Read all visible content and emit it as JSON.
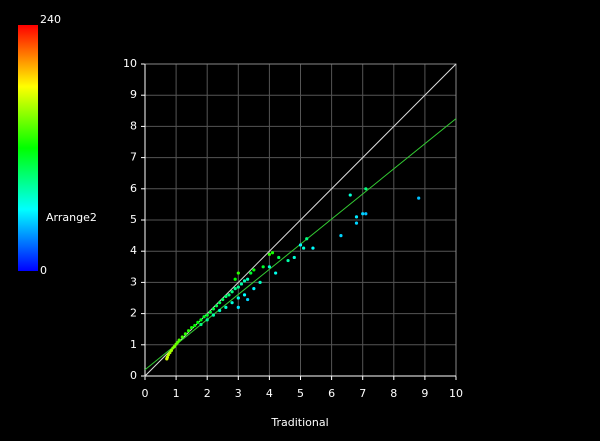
{
  "chart_data": {
    "type": "scatter",
    "x_label": "Traditional",
    "xlim": [
      0,
      10
    ],
    "ylim": [
      0,
      10
    ],
    "xticks": [
      0,
      1,
      2,
      3,
      4,
      5,
      6,
      7,
      8,
      9,
      10
    ],
    "yticks": [
      0,
      1,
      2,
      3,
      4,
      5,
      6,
      7,
      8,
      9,
      10
    ],
    "grid": true,
    "colorbar": {
      "label": "Arrange2",
      "range": [
        0,
        240
      ]
    },
    "reference_line": {
      "color": "#dddddd",
      "x": [
        0,
        10
      ],
      "y": [
        0,
        10
      ]
    },
    "fit_line": {
      "color": "#33cc33",
      "x": [
        0,
        10
      ],
      "y": [
        0.2,
        8.25
      ]
    },
    "points": {
      "x": [
        0.7,
        0.72,
        0.75,
        0.8,
        0.85,
        0.9,
        0.95,
        1.0,
        1.05,
        1.1,
        1.2,
        1.3,
        1.4,
        1.5,
        1.6,
        1.7,
        1.8,
        1.9,
        2.0,
        2.1,
        2.2,
        2.3,
        2.4,
        2.5,
        2.6,
        2.7,
        2.8,
        2.9,
        3.0,
        3.1,
        3.2,
        3.3,
        1.8,
        2.0,
        2.2,
        2.4,
        2.6,
        2.8,
        3.0,
        3.2,
        3.5,
        3.3,
        3.0,
        3.5,
        3.8,
        4.0,
        4.1,
        4.3,
        4.6,
        4.8,
        5.0,
        5.2,
        5.1,
        5.4,
        4.0,
        4.2,
        3.7,
        3.4,
        3.0,
        2.9,
        6.3,
        6.6,
        6.8,
        6.8,
        7.0,
        7.1,
        7.1,
        8.8
      ],
      "y": [
        0.55,
        0.6,
        0.68,
        0.75,
        0.82,
        0.9,
        0.95,
        1.02,
        1.08,
        1.15,
        1.25,
        1.35,
        1.45,
        1.55,
        1.62,
        1.72,
        1.8,
        1.9,
        1.95,
        2.05,
        2.15,
        2.25,
        2.35,
        2.45,
        2.55,
        2.6,
        2.7,
        2.8,
        2.85,
        2.95,
        3.05,
        3.1,
        1.65,
        1.8,
        1.95,
        2.1,
        2.2,
        2.35,
        2.5,
        2.6,
        2.8,
        2.45,
        2.2,
        3.4,
        3.5,
        3.9,
        3.95,
        3.8,
        3.7,
        3.8,
        4.2,
        4.4,
        4.1,
        4.1,
        3.5,
        3.3,
        3.0,
        3.3,
        3.3,
        3.1,
        4.5,
        5.8,
        4.9,
        5.1,
        5.2,
        5.2,
        6.0,
        5.7
      ],
      "c": [
        170,
        168,
        165,
        160,
        158,
        150,
        148,
        145,
        140,
        138,
        135,
        130,
        128,
        125,
        120,
        118,
        115,
        112,
        110,
        108,
        105,
        102,
        100,
        98,
        95,
        92,
        90,
        88,
        85,
        80,
        78,
        75,
        90,
        85,
        80,
        75,
        70,
        68,
        65,
        60,
        58,
        50,
        55,
        120,
        110,
        130,
        125,
        100,
        80,
        70,
        60,
        90,
        70,
        60,
        70,
        65,
        75,
        110,
        130,
        120,
        50,
        70,
        50,
        55,
        50,
        45,
        90,
        45
      ]
    }
  }
}
